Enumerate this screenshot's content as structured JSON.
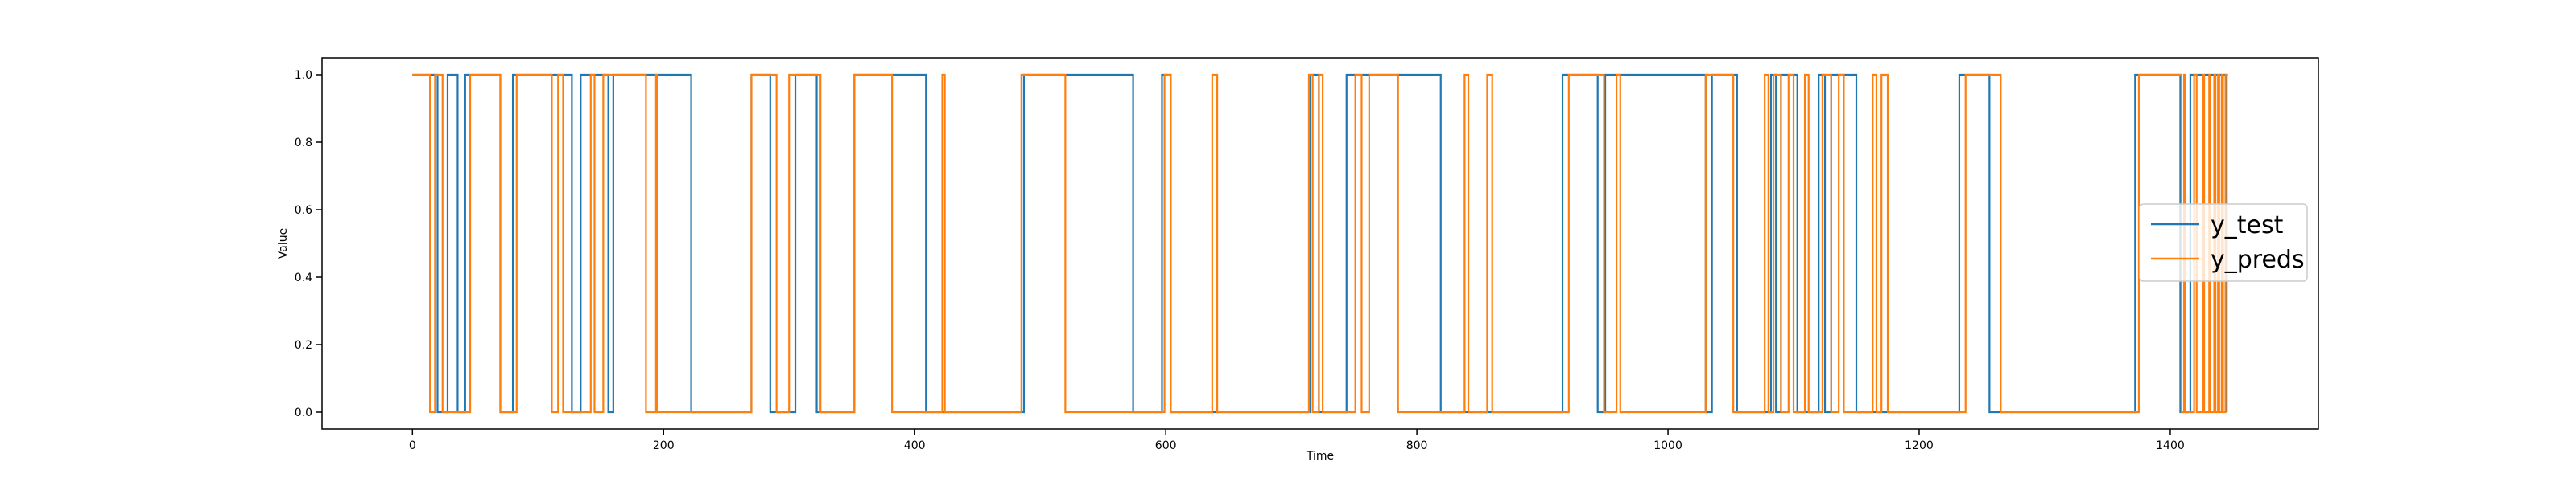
{
  "chart_data": {
    "type": "line",
    "title": "",
    "xlabel": "Time",
    "ylabel": "Value",
    "xlim": [
      -72,
      1518
    ],
    "ylim": [
      -0.05,
      1.05
    ],
    "xticks": [
      0,
      200,
      400,
      600,
      800,
      1000,
      1200,
      1400
    ],
    "yticks": [
      0.0,
      0.2,
      0.4,
      0.6,
      0.8,
      1.0
    ],
    "xtick_labels": [
      "0",
      "200",
      "400",
      "600",
      "800",
      "1000",
      "1200",
      "1400"
    ],
    "ytick_labels": [
      "0.0",
      "0.2",
      "0.4",
      "0.6",
      "0.8",
      "1.0"
    ],
    "grid": false,
    "legend_position": "center-right",
    "series": [
      {
        "name": "y_test",
        "color": "#1f77b4",
        "step_changes": [
          [
            0,
            1
          ],
          [
            20,
            0
          ],
          [
            28,
            1
          ],
          [
            36,
            0
          ],
          [
            42,
            1
          ],
          [
            70,
            0
          ],
          [
            80,
            1
          ],
          [
            127,
            0
          ],
          [
            134,
            1
          ],
          [
            156,
            0
          ],
          [
            160,
            1
          ],
          [
            222,
            0
          ],
          [
            270,
            1
          ],
          [
            285,
            0
          ],
          [
            305,
            1
          ],
          [
            322,
            0
          ],
          [
            352,
            1
          ],
          [
            409,
            0
          ],
          [
            487,
            1
          ],
          [
            574,
            0
          ],
          [
            597,
            1
          ],
          [
            604,
            0
          ],
          [
            715,
            1
          ],
          [
            722,
            0
          ],
          [
            744,
            1
          ],
          [
            819,
            0
          ],
          [
            916,
            1
          ],
          [
            944,
            0
          ],
          [
            950,
            1
          ],
          [
            1030,
            0
          ],
          [
            1035,
            1
          ],
          [
            1055,
            0
          ],
          [
            1082,
            1
          ],
          [
            1086,
            0
          ],
          [
            1090,
            1
          ],
          [
            1103,
            0
          ],
          [
            1120,
            1
          ],
          [
            1125,
            0
          ],
          [
            1130,
            1
          ],
          [
            1150,
            0
          ],
          [
            1232,
            1
          ],
          [
            1256,
            0
          ],
          [
            1372,
            1
          ],
          [
            1408,
            0
          ],
          [
            1416,
            1
          ],
          [
            1445,
            0
          ]
        ],
        "x_end": 1445
      },
      {
        "name": "y_preds",
        "color": "#ff7f0e",
        "step_changes": [
          [
            0,
            1
          ],
          [
            14,
            0
          ],
          [
            18,
            1
          ],
          [
            24,
            0
          ],
          [
            46,
            1
          ],
          [
            70,
            0
          ],
          [
            83,
            1
          ],
          [
            111,
            0
          ],
          [
            116,
            1
          ],
          [
            120,
            0
          ],
          [
            142,
            1
          ],
          [
            145,
            0
          ],
          [
            152,
            1
          ],
          [
            186,
            0
          ],
          [
            194,
            1
          ],
          [
            195,
            0
          ],
          [
            270,
            1
          ],
          [
            290,
            0
          ],
          [
            300,
            1
          ],
          [
            325,
            0
          ],
          [
            352,
            1
          ],
          [
            382,
            0
          ],
          [
            422,
            1
          ],
          [
            424,
            0
          ],
          [
            485,
            1
          ],
          [
            520,
            0
          ],
          [
            599,
            1
          ],
          [
            604,
            0
          ],
          [
            637,
            1
          ],
          [
            641,
            0
          ],
          [
            714,
            1
          ],
          [
            717,
            0
          ],
          [
            722,
            1
          ],
          [
            725,
            0
          ],
          [
            751,
            1
          ],
          [
            756,
            0
          ],
          [
            762,
            1
          ],
          [
            785,
            0
          ],
          [
            838,
            1
          ],
          [
            841,
            0
          ],
          [
            856,
            1
          ],
          [
            860,
            0
          ],
          [
            921,
            1
          ],
          [
            949,
            0
          ],
          [
            959,
            1
          ],
          [
            962,
            0
          ],
          [
            1030,
            1
          ],
          [
            1052,
            0
          ],
          [
            1077,
            1
          ],
          [
            1080,
            0
          ],
          [
            1084,
            1
          ],
          [
            1090,
            0
          ],
          [
            1096,
            1
          ],
          [
            1100,
            0
          ],
          [
            1109,
            1
          ],
          [
            1112,
            0
          ],
          [
            1123,
            1
          ],
          [
            1130,
            0
          ],
          [
            1136,
            1
          ],
          [
            1140,
            0
          ],
          [
            1163,
            1
          ],
          [
            1166,
            0
          ],
          [
            1170,
            1
          ],
          [
            1175,
            0
          ],
          [
            1237,
            1
          ],
          [
            1265,
            0
          ],
          [
            1375,
            1
          ],
          [
            1409,
            0
          ],
          [
            1411,
            1
          ],
          [
            1412,
            0
          ],
          [
            1419,
            1
          ],
          [
            1421,
            0
          ],
          [
            1426,
            1
          ],
          [
            1427,
            0
          ],
          [
            1431,
            1
          ],
          [
            1432,
            0
          ],
          [
            1435,
            1
          ],
          [
            1436,
            0
          ],
          [
            1438,
            1
          ],
          [
            1439,
            0
          ],
          [
            1441,
            1
          ],
          [
            1442,
            0
          ],
          [
            1444,
            1
          ]
        ],
        "x_end": 1446
      }
    ]
  }
}
